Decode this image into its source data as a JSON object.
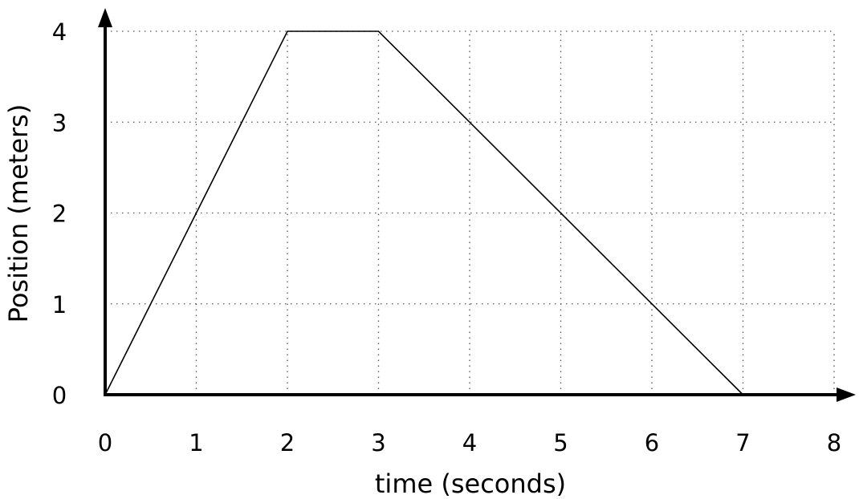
{
  "chart_data": {
    "type": "line",
    "title": "",
    "xlabel": "time (seconds)",
    "ylabel": "Position (meters)",
    "xlim": [
      0,
      8
    ],
    "ylim": [
      0,
      4
    ],
    "x_ticks": [
      0,
      1,
      2,
      3,
      4,
      5,
      6,
      7,
      8
    ],
    "y_ticks": [
      0,
      1,
      2,
      3,
      4
    ],
    "x_tick_labels": [
      "0",
      "1",
      "2",
      "3",
      "4",
      "5",
      "6",
      "7",
      "8"
    ],
    "y_tick_labels": [
      "0",
      "1",
      "2",
      "3",
      "4"
    ],
    "grid": true,
    "grid_style": "dotted",
    "series": [
      {
        "x": [
          0,
          2,
          3,
          7
        ],
        "y": [
          0,
          4,
          4,
          0
        ],
        "color": "#000000"
      }
    ]
  }
}
